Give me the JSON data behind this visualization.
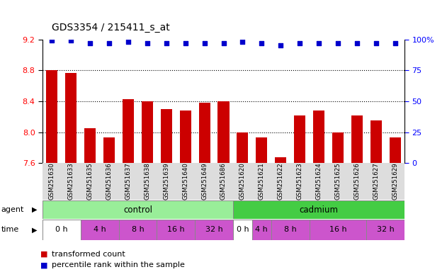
{
  "title": "GDS3354 / 215411_s_at",
  "samples": [
    "GSM251630",
    "GSM251633",
    "GSM251635",
    "GSM251636",
    "GSM251637",
    "GSM251638",
    "GSM251639",
    "GSM251640",
    "GSM251649",
    "GSM251686",
    "GSM251620",
    "GSM251621",
    "GSM251622",
    "GSM251623",
    "GSM251624",
    "GSM251625",
    "GSM251626",
    "GSM251627",
    "GSM251629"
  ],
  "bar_values": [
    8.8,
    8.77,
    8.05,
    7.93,
    8.43,
    8.4,
    8.3,
    8.28,
    8.38,
    8.4,
    8.0,
    7.93,
    7.68,
    8.22,
    8.28,
    8.0,
    8.22,
    8.15,
    7.93
  ],
  "percentile_values": [
    99,
    99,
    97,
    97,
    98,
    97,
    97,
    97,
    97,
    97,
    98,
    97,
    95,
    97,
    97,
    97,
    97,
    97,
    97
  ],
  "bar_color": "#cc0000",
  "dot_color": "#0000cc",
  "ylim_left": [
    7.6,
    9.2
  ],
  "ylim_right": [
    0,
    100
  ],
  "yticks_left": [
    7.6,
    8.0,
    8.4,
    8.8,
    9.2
  ],
  "yticks_right": [
    0,
    25,
    50,
    75,
    100
  ],
  "ytick_labels_right": [
    "0",
    "25",
    "50",
    "75",
    "100%"
  ],
  "hlines": [
    8.0,
    8.4,
    8.8
  ],
  "control_color": "#99ee99",
  "cadmium_color": "#44cc44",
  "time_seg_control": [
    [
      0,
      2,
      "0 h",
      "#ffffff"
    ],
    [
      2,
      4,
      "4 h",
      "#cc55cc"
    ],
    [
      4,
      6,
      "8 h",
      "#cc55cc"
    ],
    [
      6,
      8,
      "16 h",
      "#cc55cc"
    ],
    [
      8,
      10,
      "32 h",
      "#cc55cc"
    ]
  ],
  "time_seg_cadmium": [
    [
      10,
      11,
      "0 h",
      "#ffffff"
    ],
    [
      11,
      12,
      "4 h",
      "#cc55cc"
    ],
    [
      12,
      14,
      "8 h",
      "#cc55cc"
    ],
    [
      14,
      17,
      "16 h",
      "#cc55cc"
    ],
    [
      17,
      19,
      "32 h",
      "#cc55cc"
    ]
  ],
  "legend_red_label": "transformed count",
  "legend_blue_label": "percentile rank within the sample",
  "background_color": "#ffffff",
  "xticklabel_bg": "#dddddd",
  "n_samples": 19
}
